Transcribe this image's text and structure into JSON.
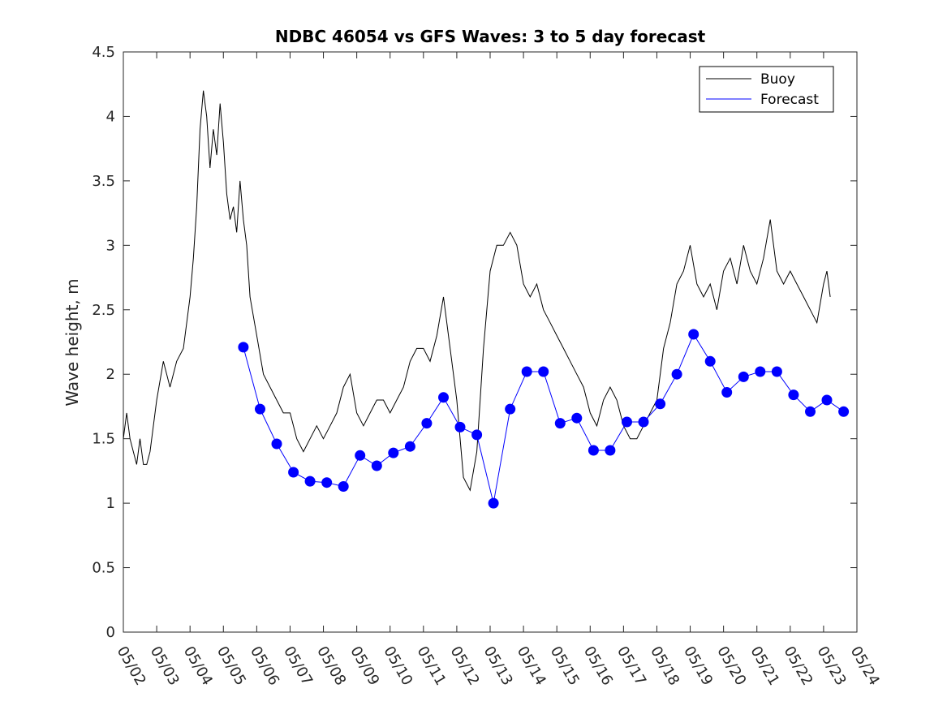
{
  "chart_data": {
    "type": "line",
    "title": "NDBC 46054 vs GFS Waves: 3 to 5 day forecast",
    "xlabel": "",
    "ylabel": "Wave height, m",
    "xlim_day": [
      2,
      24
    ],
    "ylim": [
      0,
      4.5
    ],
    "yticks": [
      "0",
      "0.5",
      "1",
      "1.5",
      "2",
      "2.5",
      "3",
      "3.5",
      "4",
      "4.5"
    ],
    "xticks": [
      "05/02",
      "05/03",
      "05/04",
      "05/05",
      "05/06",
      "05/07",
      "05/08",
      "05/09",
      "05/10",
      "05/11",
      "05/12",
      "05/13",
      "05/14",
      "05/15",
      "05/16",
      "05/17",
      "05/18",
      "05/19",
      "05/20",
      "05/21",
      "05/22",
      "05/23",
      "05/24"
    ],
    "legend": {
      "position": "top-right",
      "entries": [
        "Buoy",
        "Forecast"
      ]
    },
    "colors": {
      "buoy": "#000000",
      "forecast": "#0000ff"
    },
    "grid": false,
    "series": [
      {
        "name": "Buoy",
        "x_day": [
          2.0,
          2.1,
          2.2,
          2.3,
          2.4,
          2.5,
          2.6,
          2.7,
          2.8,
          3.0,
          3.2,
          3.4,
          3.6,
          3.8,
          4.0,
          4.1,
          4.2,
          4.3,
          4.4,
          4.5,
          4.6,
          4.7,
          4.8,
          4.9,
          5.0,
          5.1,
          5.2,
          5.3,
          5.4,
          5.5,
          5.6,
          5.7,
          5.8,
          6.0,
          6.2,
          6.4,
          6.6,
          6.8,
          7.0,
          7.2,
          7.4,
          7.6,
          7.8,
          8.0,
          8.2,
          8.4,
          8.6,
          8.8,
          9.0,
          9.2,
          9.4,
          9.6,
          9.8,
          10.0,
          10.2,
          10.4,
          10.6,
          10.8,
          11.0,
          11.2,
          11.4,
          11.6,
          11.8,
          12.0,
          12.1,
          12.2,
          12.4,
          12.6,
          12.8,
          13.0,
          13.1,
          13.2,
          13.4,
          13.6,
          13.8,
          14.0,
          14.2,
          14.4,
          14.6,
          14.8,
          15.0,
          15.2,
          15.4,
          15.6,
          15.8,
          16.0,
          16.2,
          16.4,
          16.6,
          16.8,
          17.0,
          17.2,
          17.4,
          17.6,
          17.8,
          18.0,
          18.2,
          18.4,
          18.6,
          18.8,
          19.0,
          19.2,
          19.4,
          19.6,
          19.8,
          20.0,
          20.2,
          20.4,
          20.6,
          20.8,
          21.0,
          21.2,
          21.4,
          21.6,
          21.8,
          22.0,
          22.2,
          22.4,
          22.6,
          22.8,
          23.0,
          23.1,
          23.2
        ],
        "values": [
          1.5,
          1.7,
          1.5,
          1.4,
          1.3,
          1.5,
          1.3,
          1.3,
          1.4,
          1.8,
          2.1,
          1.9,
          2.1,
          2.2,
          2.6,
          2.9,
          3.3,
          3.9,
          4.2,
          4.0,
          3.6,
          3.9,
          3.7,
          4.1,
          3.8,
          3.4,
          3.2,
          3.3,
          3.1,
          3.5,
          3.2,
          3.0,
          2.6,
          2.3,
          2.0,
          1.9,
          1.8,
          1.7,
          1.7,
          1.5,
          1.4,
          1.5,
          1.6,
          1.5,
          1.6,
          1.7,
          1.9,
          2.0,
          1.7,
          1.6,
          1.7,
          1.8,
          1.8,
          1.7,
          1.8,
          1.9,
          2.1,
          2.2,
          2.2,
          2.1,
          2.3,
          2.6,
          2.2,
          1.8,
          1.5,
          1.2,
          1.1,
          1.4,
          2.2,
          2.8,
          2.9,
          3.0,
          3.0,
          3.1,
          3.0,
          2.7,
          2.6,
          2.7,
          2.5,
          2.4,
          2.3,
          2.2,
          2.1,
          2.0,
          1.9,
          1.7,
          1.6,
          1.8,
          1.9,
          1.8,
          1.6,
          1.5,
          1.5,
          1.6,
          1.7,
          1.8,
          2.2,
          2.4,
          2.7,
          2.8,
          3.0,
          2.7,
          2.6,
          2.7,
          2.5,
          2.8,
          2.9,
          2.7,
          3.0,
          2.8,
          2.7,
          2.9,
          3.2,
          2.8,
          2.7,
          2.8,
          2.7,
          2.6,
          2.5,
          2.4,
          2.7,
          2.8,
          2.6
        ]
      },
      {
        "name": "Forecast",
        "x_day": [
          5.6,
          6.1,
          6.6,
          7.1,
          7.6,
          8.1,
          8.6,
          9.1,
          9.6,
          10.1,
          10.6,
          11.1,
          11.6,
          12.1,
          12.6,
          13.1,
          13.6,
          14.1,
          14.6,
          15.1,
          15.6,
          16.1,
          16.6,
          17.1,
          17.6,
          18.1,
          18.6,
          19.1,
          19.6,
          20.1,
          20.6,
          21.1,
          21.6,
          22.1,
          22.6,
          23.1,
          23.6
        ],
        "values": [
          2.21,
          1.73,
          1.46,
          1.24,
          1.17,
          1.16,
          1.13,
          1.37,
          1.29,
          1.39,
          1.44,
          1.62,
          1.82,
          1.59,
          1.53,
          1.0,
          1.73,
          2.02,
          2.02,
          1.62,
          1.66,
          1.41,
          1.41,
          1.63,
          1.63,
          1.77,
          2.0,
          2.31,
          2.1,
          1.86,
          1.98,
          2.02,
          2.02,
          1.84,
          1.71,
          1.8,
          1.71
        ]
      }
    ]
  }
}
